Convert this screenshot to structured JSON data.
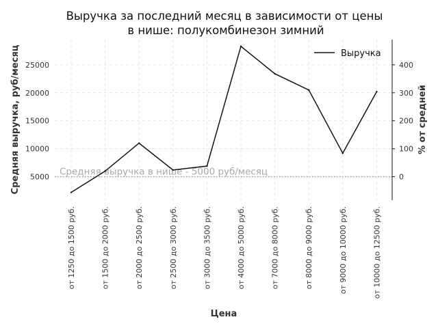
{
  "chart_data": {
    "type": "line",
    "title_lines": [
      "Выручка за последний месяц в зависимости от цены",
      "в нише: полукомбинезон зимний"
    ],
    "xlabel": "Цена",
    "ylabel": "Средняя выручка, руб/месяц",
    "y2label": "% от средней",
    "categories": [
      "от 1250 до 1500 руб.",
      "от 1500 до 2000 руб.",
      "от 2000 до 2500 руб.",
      "от 2500 до 3000 руб.",
      "от 3000 до 3500 руб.",
      "от 4000 до 5000 руб.",
      "от 7000 до 8000 руб.",
      "от 8000 до 9000 руб.",
      "от 9000 до 10000 руб.",
      "от 10000 до 12500 руб."
    ],
    "series": [
      {
        "name": "Выручка",
        "color": "#111111",
        "values": [
          2200,
          6000,
          11000,
          6200,
          6900,
          28300,
          23400,
          20500,
          9200,
          20200
        ]
      }
    ],
    "ylim": [
      800,
      29500
    ],
    "yticks": [
      5000,
      10000,
      15000,
      20000,
      25000
    ],
    "y2ticks": [
      0,
      100,
      200,
      300,
      400
    ],
    "reference_line": {
      "value": 5000,
      "label": "Средняя выручка в нише - 5000 руб/месяц",
      "color": "#9a9a9a"
    },
    "grid": true,
    "legend_position": "top-right"
  }
}
